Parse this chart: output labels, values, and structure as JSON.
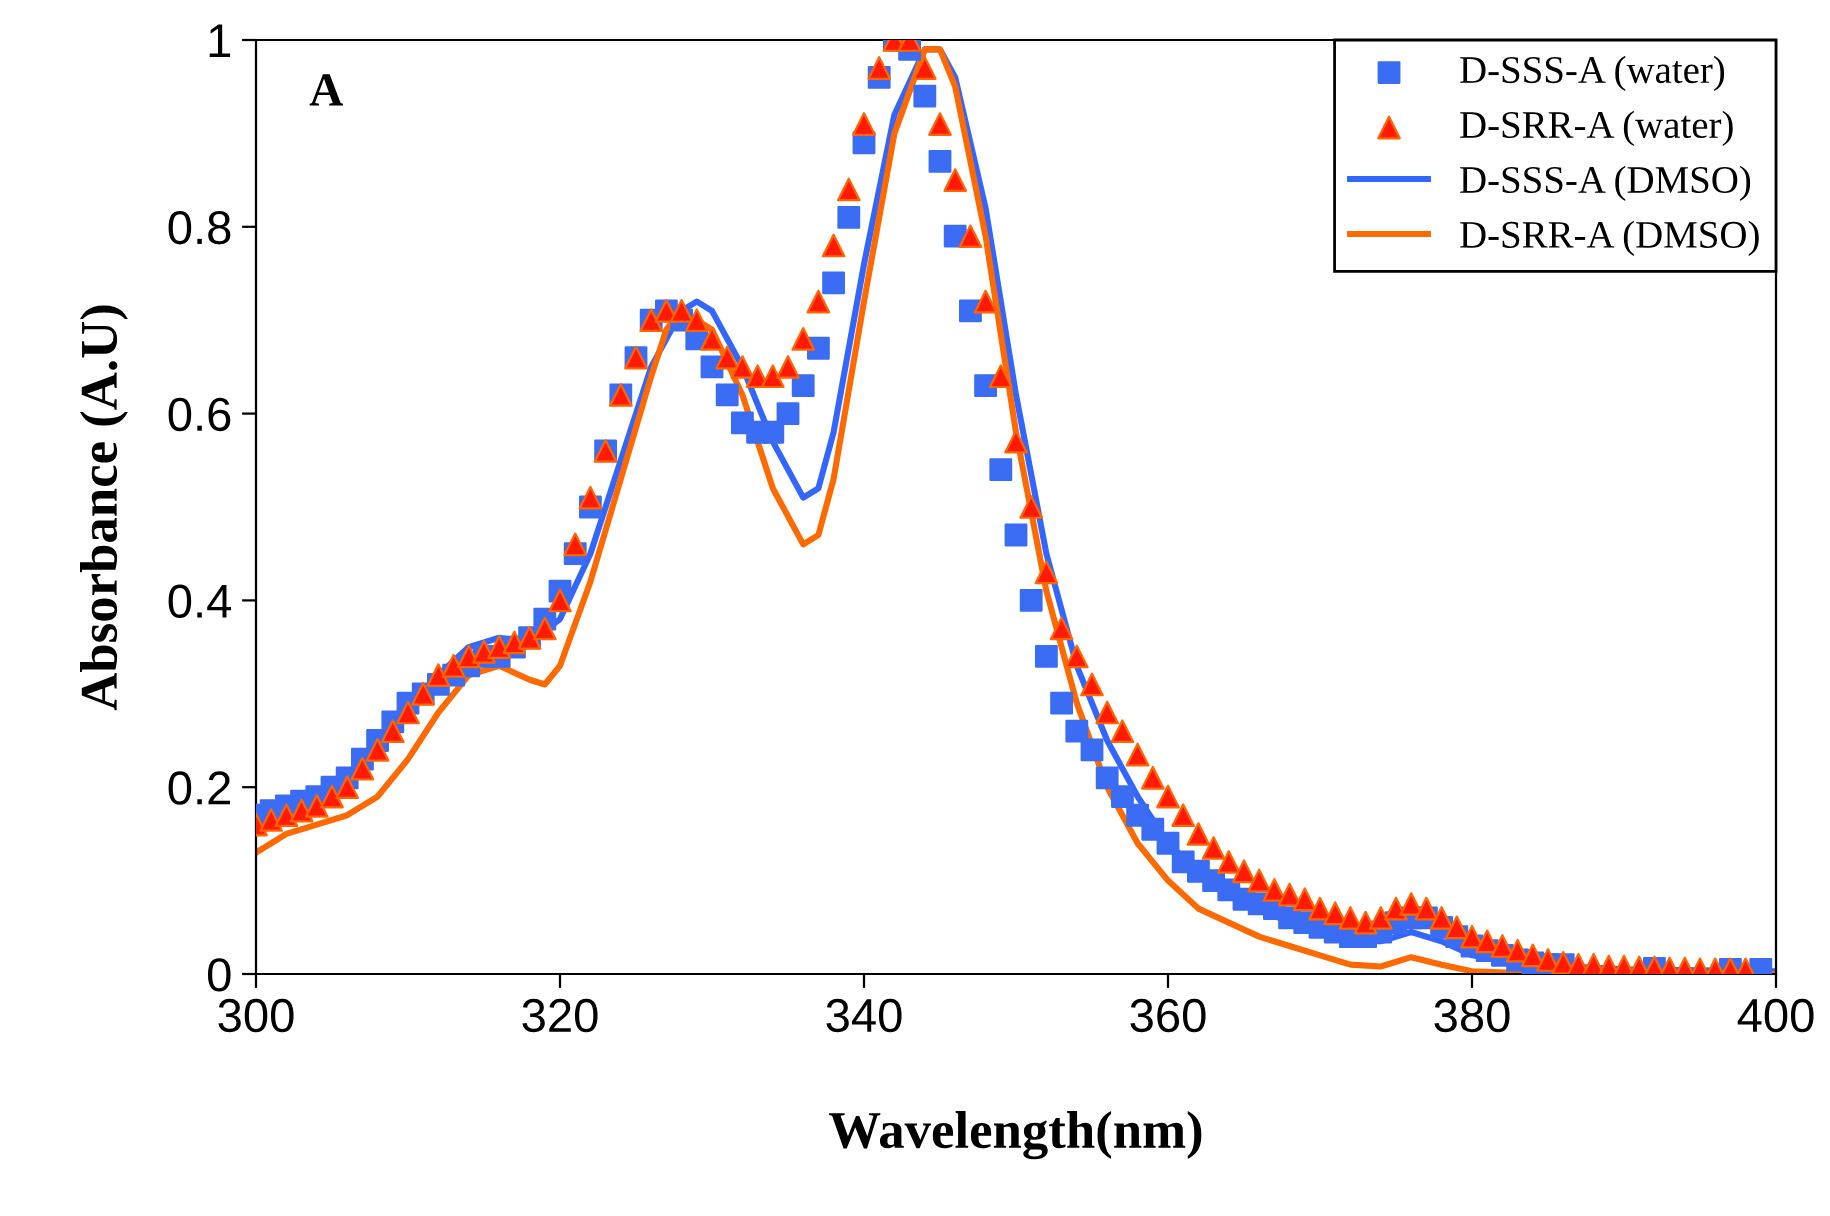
{
  "chart_data": {
    "type": "line",
    "xlabel": "Wavelength(nm)",
    "ylabel": "Absorbance (A.U)",
    "annotations": [
      "A"
    ],
    "xlim": [
      300,
      400
    ],
    "xticks": [
      300,
      320,
      340,
      360,
      380,
      400
    ],
    "ylim": [
      0,
      1
    ],
    "yticks": [
      0,
      0.2,
      0.4,
      0.6,
      0.8,
      1
    ],
    "grid": false,
    "legend": "top right",
    "series": [
      {
        "name": "D-SSS-A (water)",
        "type": "scatter",
        "marker": "square",
        "color": "#3a6cf4",
        "x": [
          300,
          301,
          302,
          303,
          304,
          305,
          306,
          307,
          308,
          309,
          310,
          311,
          312,
          313,
          314,
          315,
          316,
          317,
          318,
          319,
          320,
          321,
          322,
          323,
          324,
          325,
          326,
          327,
          328,
          329,
          330,
          331,
          332,
          333,
          334,
          335,
          336,
          337,
          338,
          339,
          340,
          341,
          342,
          343,
          344,
          345,
          346,
          347,
          348,
          349,
          350,
          351,
          352,
          353,
          354,
          355,
          356,
          357,
          358,
          359,
          360,
          361,
          362,
          363,
          364,
          365,
          366,
          367,
          368,
          369,
          370,
          371,
          372,
          373,
          374,
          375,
          376,
          377,
          378,
          379,
          380,
          381,
          382,
          383,
          384,
          385,
          386,
          387,
          388,
          389,
          390,
          391,
          392,
          393,
          394,
          395,
          396,
          397,
          398,
          399
        ],
        "values": [
          0.17,
          0.175,
          0.18,
          0.185,
          0.19,
          0.2,
          0.21,
          0.23,
          0.25,
          0.27,
          0.29,
          0.3,
          0.31,
          0.32,
          0.33,
          0.34,
          0.34,
          0.35,
          0.36,
          0.38,
          0.41,
          0.45,
          0.5,
          0.56,
          0.62,
          0.66,
          0.7,
          0.71,
          0.7,
          0.68,
          0.65,
          0.62,
          0.59,
          0.58,
          0.58,
          0.6,
          0.63,
          0.67,
          0.74,
          0.81,
          0.89,
          0.96,
          1.0,
          0.99,
          0.94,
          0.87,
          0.79,
          0.71,
          0.63,
          0.54,
          0.47,
          0.4,
          0.34,
          0.29,
          0.26,
          0.24,
          0.21,
          0.19,
          0.17,
          0.155,
          0.14,
          0.12,
          0.11,
          0.1,
          0.09,
          0.08,
          0.075,
          0.07,
          0.06,
          0.055,
          0.05,
          0.045,
          0.04,
          0.04,
          0.045,
          0.055,
          0.06,
          0.06,
          0.05,
          0.04,
          0.03,
          0.025,
          0.02,
          0.015,
          0.012,
          0.01,
          0.01,
          null,
          null,
          null,
          null,
          null,
          0.006,
          null,
          null,
          null,
          null,
          0.005,
          null,
          0.005
        ]
      },
      {
        "name": "D-SRR-A (water)",
        "type": "scatter",
        "marker": "triangle",
        "color": "#ff1a00",
        "x": [
          300,
          301,
          302,
          303,
          304,
          305,
          306,
          307,
          308,
          309,
          310,
          311,
          312,
          313,
          314,
          315,
          316,
          317,
          318,
          319,
          320,
          321,
          322,
          323,
          324,
          325,
          326,
          327,
          328,
          329,
          330,
          331,
          332,
          333,
          334,
          335,
          336,
          337,
          338,
          339,
          340,
          341,
          342,
          343,
          344,
          345,
          346,
          347,
          348,
          349,
          350,
          351,
          352,
          353,
          354,
          355,
          356,
          357,
          358,
          359,
          360,
          361,
          362,
          363,
          364,
          365,
          366,
          367,
          368,
          369,
          370,
          371,
          372,
          373,
          374,
          375,
          376,
          377,
          378,
          379,
          380,
          381,
          382,
          383,
          384,
          385,
          386,
          387,
          388,
          389,
          390,
          391,
          392,
          393,
          394,
          395,
          396,
          397,
          398
        ],
        "values": [
          0.16,
          0.165,
          0.17,
          0.175,
          0.18,
          0.19,
          0.2,
          0.22,
          0.24,
          0.26,
          0.28,
          0.3,
          0.32,
          0.33,
          0.34,
          0.345,
          0.35,
          0.355,
          0.36,
          0.37,
          0.4,
          0.46,
          0.51,
          0.56,
          0.62,
          0.66,
          0.7,
          0.71,
          0.71,
          0.7,
          0.68,
          0.66,
          0.65,
          0.64,
          0.64,
          0.65,
          0.68,
          0.72,
          0.78,
          0.84,
          0.91,
          0.97,
          1.0,
          1.0,
          0.97,
          0.91,
          0.85,
          0.79,
          0.72,
          0.64,
          0.57,
          0.5,
          0.43,
          0.37,
          0.34,
          0.31,
          0.28,
          0.26,
          0.235,
          0.21,
          0.19,
          0.17,
          0.15,
          0.135,
          0.12,
          0.11,
          0.1,
          0.09,
          0.085,
          0.08,
          0.07,
          0.065,
          0.06,
          0.055,
          0.06,
          0.07,
          0.075,
          0.07,
          0.06,
          0.05,
          0.04,
          0.035,
          0.03,
          0.025,
          0.02,
          0.015,
          0.012,
          0.01,
          0.01,
          0.008,
          0.008,
          0.007,
          0.007,
          0.006,
          0.006,
          0.005,
          0.005,
          0.005,
          0.005
        ]
      },
      {
        "name": "D-SSS-A (DMSO)",
        "marker": "none",
        "line_style": "solid",
        "color": "#3366ff",
        "x": [
          300,
          304,
          306,
          308,
          310,
          312,
          314,
          316,
          318,
          320,
          322,
          324,
          326,
          328,
          329,
          330,
          332,
          334,
          336,
          337,
          338,
          340,
          342,
          344,
          345,
          346,
          348,
          350,
          352,
          354,
          356,
          358,
          360,
          362,
          364,
          366,
          368,
          370,
          372,
          374,
          376,
          378,
          380,
          384,
          390,
          400
        ],
        "values": [
          0.17,
          0.19,
          0.21,
          0.24,
          0.28,
          0.32,
          0.35,
          0.36,
          0.355,
          0.38,
          0.45,
          0.55,
          0.65,
          0.71,
          0.72,
          0.71,
          0.65,
          0.57,
          0.51,
          0.52,
          0.58,
          0.76,
          0.92,
          0.99,
          0.99,
          0.96,
          0.82,
          0.62,
          0.45,
          0.33,
          0.25,
          0.19,
          0.14,
          0.11,
          0.085,
          0.07,
          0.055,
          0.045,
          0.035,
          0.035,
          0.045,
          0.035,
          0.02,
          0.01,
          0.005,
          0.003
        ]
      },
      {
        "name": "D-SRR-A (DMSO)",
        "marker": "none",
        "line_style": "solid",
        "color": "#ff6a00",
        "x": [
          300,
          302,
          304,
          306,
          308,
          310,
          312,
          314,
          316,
          318,
          319,
          320,
          322,
          324,
          326,
          327,
          328,
          330,
          332,
          334,
          336,
          337,
          338,
          340,
          342,
          344,
          345,
          346,
          348,
          350,
          352,
          354,
          356,
          358,
          360,
          362,
          364,
          366,
          368,
          370,
          372,
          374,
          376,
          378,
          380,
          385,
          400
        ],
        "values": [
          0.13,
          0.15,
          0.16,
          0.17,
          0.19,
          0.23,
          0.28,
          0.32,
          0.33,
          0.315,
          0.31,
          0.33,
          0.42,
          0.53,
          0.64,
          0.69,
          0.71,
          0.69,
          0.62,
          0.52,
          0.46,
          0.47,
          0.53,
          0.72,
          0.9,
          0.99,
          0.99,
          0.95,
          0.79,
          0.58,
          0.41,
          0.29,
          0.2,
          0.14,
          0.1,
          0.07,
          0.055,
          0.04,
          0.03,
          0.02,
          0.01,
          0.008,
          0.018,
          0.01,
          0.003,
          0.0,
          0.0
        ]
      }
    ]
  }
}
